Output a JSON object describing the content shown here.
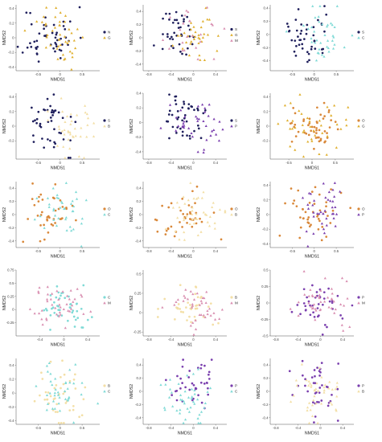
{
  "figure": {
    "rows": 5,
    "cols": 3,
    "xlabel": "NMDS1",
    "ylabel": "NMDS2",
    "colors": {
      "navy": "#1f1f5c",
      "gold": "#e0b030",
      "cyan": "#7fdad6",
      "beige": "#f3dfa6",
      "orange": "#d9883a",
      "purple": "#7a3fae",
      "pink": "#d98fb1",
      "mustard": "#c9a23a"
    }
  },
  "chart_data": [
    {
      "type": "scatter",
      "panel": 1,
      "xlabel": "NMDS1",
      "ylabel": "NMDS2",
      "xlim": [
        -1.0,
        0.9
      ],
      "ylim": [
        -0.45,
        0.45
      ],
      "xticks": [
        -0.5,
        0.0,
        0.5
      ],
      "yticks": [
        -0.4,
        -0.2,
        0.0,
        0.2,
        0.4
      ],
      "legend": "right",
      "series": [
        {
          "name": "N",
          "color": "#1f1f5c",
          "shape": "circle",
          "n": 50,
          "cx": -0.25,
          "sx": 0.3,
          "cy": 0.02,
          "sy": 0.2,
          "seed": 11
        },
        {
          "name": "G",
          "color": "#e0b030",
          "shape": "triangle",
          "n": 45,
          "cx": 0.05,
          "sx": 0.32,
          "cy": 0.02,
          "sy": 0.2,
          "seed": 12
        }
      ]
    },
    {
      "type": "scatter",
      "panel": 2,
      "xlabel": "NMDS1",
      "ylabel": "NMDS2",
      "xlim": [
        -0.9,
        0.6
      ],
      "ylim": [
        -0.5,
        0.5
      ],
      "xticks": [
        -0.8,
        -0.4,
        0.0,
        0.4
      ],
      "yticks": [
        -0.4,
        -0.2,
        0.0,
        0.2,
        0.4
      ],
      "legend": "right",
      "series": [
        {
          "name": "S",
          "color": "#1f1f5c",
          "shape": "circle",
          "n": 40,
          "cx": -0.25,
          "sx": 0.18,
          "cy": 0.05,
          "sy": 0.18,
          "seed": 21
        },
        {
          "name": "G",
          "color": "#e0b030",
          "shape": "triangle",
          "n": 35,
          "cx": 0.0,
          "sx": 0.2,
          "cy": 0.0,
          "sy": 0.18,
          "seed": 22
        },
        {
          "name": "M",
          "color": "#d98fb1",
          "shape": "triangle",
          "n": 25,
          "cx": 0.05,
          "sx": 0.22,
          "cy": 0.02,
          "sy": 0.2,
          "seed": 23
        }
      ]
    },
    {
      "type": "scatter",
      "panel": 3,
      "xlabel": "NMDS1",
      "ylabel": "NMDS2",
      "xlim": [
        -1.0,
        0.9
      ],
      "ylim": [
        -0.55,
        0.45
      ],
      "xticks": [
        -0.5,
        0.0,
        0.5
      ],
      "yticks": [
        -0.4,
        -0.2,
        0.0,
        0.2,
        0.4
      ],
      "legend": "right",
      "series": [
        {
          "name": "S",
          "color": "#1f1f5c",
          "shape": "circle",
          "n": 45,
          "cx": -0.25,
          "sx": 0.3,
          "cy": -0.05,
          "sy": 0.2,
          "seed": 31
        },
        {
          "name": "C",
          "color": "#7fdad6",
          "shape": "triangle",
          "n": 40,
          "cx": 0.2,
          "sx": 0.3,
          "cy": 0.05,
          "sy": 0.2,
          "seed": 32
        }
      ]
    },
    {
      "type": "scatter",
      "panel": 4,
      "xlabel": "NMDS1",
      "ylabel": "NMDS2",
      "xlim": [
        -1.0,
        0.9
      ],
      "ylim": [
        -0.45,
        0.45
      ],
      "xticks": [
        -0.5,
        0.0,
        0.5
      ],
      "yticks": [
        -0.2,
        0.0,
        0.2,
        0.4
      ],
      "legend": "right",
      "series": [
        {
          "name": "S",
          "color": "#1f1f5c",
          "shape": "circle",
          "n": 45,
          "cx": -0.15,
          "sx": 0.3,
          "cy": 0.02,
          "sy": 0.2,
          "seed": 41
        },
        {
          "name": "B",
          "color": "#f3dfa6",
          "shape": "triangle",
          "n": 40,
          "cx": 0.2,
          "sx": 0.3,
          "cy": -0.02,
          "sy": 0.2,
          "seed": 42
        }
      ]
    },
    {
      "type": "scatter",
      "panel": 5,
      "xlabel": "NMDS1",
      "ylabel": "NMDS2",
      "xlim": [
        -0.9,
        0.6
      ],
      "ylim": [
        -0.5,
        0.4
      ],
      "xticks": [
        -0.8,
        -0.4,
        0.0,
        0.4
      ],
      "yticks": [
        -0.4,
        -0.2,
        0.0,
        0.2,
        0.4
      ],
      "legend": "right",
      "series": [
        {
          "name": "S",
          "color": "#1f1f5c",
          "shape": "circle",
          "n": 45,
          "cx": -0.2,
          "sx": 0.22,
          "cy": 0.05,
          "sy": 0.18,
          "seed": 51
        },
        {
          "name": "P",
          "color": "#7a3fae",
          "shape": "triangle",
          "n": 40,
          "cx": 0.05,
          "sx": 0.25,
          "cy": -0.05,
          "sy": 0.18,
          "seed": 52
        }
      ]
    },
    {
      "type": "scatter",
      "panel": 6,
      "xlabel": "NMDS1",
      "ylabel": "NMDS2",
      "xlim": [
        -0.9,
        0.9
      ],
      "ylim": [
        -0.45,
        0.45
      ],
      "xticks": [
        -0.5,
        0.0,
        0.5
      ],
      "yticks": [
        -0.2,
        0.0,
        0.2,
        0.4
      ],
      "legend": "right",
      "series": [
        {
          "name": "O",
          "color": "#d9883a",
          "shape": "circle",
          "n": 50,
          "cx": 0.0,
          "sx": 0.3,
          "cy": 0.0,
          "sy": 0.17,
          "seed": 61
        },
        {
          "name": "G",
          "color": "#e0b030",
          "shape": "triangle",
          "n": 40,
          "cx": 0.05,
          "sx": 0.32,
          "cy": 0.0,
          "sy": 0.18,
          "seed": 62
        }
      ]
    },
    {
      "type": "scatter",
      "panel": 7,
      "xlabel": "NMDS1",
      "ylabel": "NMDS2",
      "xlim": [
        -1.0,
        0.9
      ],
      "ylim": [
        -0.5,
        0.5
      ],
      "xticks": [
        -0.5,
        0.0,
        0.5
      ],
      "yticks": [
        -0.4,
        -0.2,
        0.0,
        0.2,
        0.4
      ],
      "legend": "right",
      "series": [
        {
          "name": "O",
          "color": "#d9883a",
          "shape": "circle",
          "n": 40,
          "cx": -0.2,
          "sx": 0.3,
          "cy": 0.0,
          "sy": 0.2,
          "seed": 71
        },
        {
          "name": "C",
          "color": "#7fdad6",
          "shape": "triangle",
          "n": 40,
          "cx": 0.05,
          "sx": 0.3,
          "cy": 0.02,
          "sy": 0.2,
          "seed": 72
        }
      ]
    },
    {
      "type": "scatter",
      "panel": 8,
      "xlabel": "NMDS1",
      "ylabel": "NMDS2",
      "xlim": [
        -0.9,
        0.6
      ],
      "ylim": [
        -0.5,
        0.5
      ],
      "xticks": [
        -0.8,
        -0.4,
        0.0,
        0.4
      ],
      "yticks": [
        -0.4,
        -0.2,
        0.0,
        0.2,
        0.4
      ],
      "legend": "right",
      "series": [
        {
          "name": "O",
          "color": "#d9883a",
          "shape": "circle",
          "n": 40,
          "cx": -0.2,
          "sx": 0.22,
          "cy": -0.05,
          "sy": 0.2,
          "seed": 81
        },
        {
          "name": "B",
          "color": "#f3dfa6",
          "shape": "triangle",
          "n": 45,
          "cx": 0.05,
          "sx": 0.22,
          "cy": 0.02,
          "sy": 0.2,
          "seed": 82
        }
      ]
    },
    {
      "type": "scatter",
      "panel": 9,
      "xlabel": "NMDS1",
      "ylabel": "NMDS2",
      "xlim": [
        -1.0,
        0.9
      ],
      "ylim": [
        -0.45,
        0.45
      ],
      "xticks": [
        -0.5,
        0.0,
        0.5
      ],
      "yticks": [
        -0.4,
        -0.2,
        0.0,
        0.2,
        0.4
      ],
      "legend": "right",
      "series": [
        {
          "name": "O",
          "color": "#d9883a",
          "shape": "circle",
          "n": 45,
          "cx": -0.05,
          "sx": 0.3,
          "cy": 0.0,
          "sy": 0.18,
          "seed": 91
        },
        {
          "name": "P",
          "color": "#7a3fae",
          "shape": "triangle",
          "n": 40,
          "cx": 0.2,
          "sx": 0.3,
          "cy": 0.02,
          "sy": 0.2,
          "seed": 92
        }
      ]
    },
    {
      "type": "scatter",
      "panel": 10,
      "xlabel": "NMDS1",
      "ylabel": "NMDS2",
      "xlim": [
        -0.8,
        0.6
      ],
      "ylim": [
        -0.5,
        0.75
      ],
      "xticks": [
        -0.4,
        0.0,
        0.4
      ],
      "yticks": [
        -0.25,
        0.0,
        0.25,
        0.5,
        0.75
      ],
      "legend": "right",
      "series": [
        {
          "name": "C",
          "color": "#7fdad6",
          "shape": "circle",
          "n": 45,
          "cx": 0.0,
          "sx": 0.2,
          "cy": 0.05,
          "sy": 0.2,
          "seed": 101
        },
        {
          "name": "M",
          "color": "#d98fb1",
          "shape": "triangle",
          "n": 45,
          "cx": -0.1,
          "sx": 0.2,
          "cy": 0.1,
          "sy": 0.2,
          "seed": 102
        }
      ]
    },
    {
      "type": "scatter",
      "panel": 11,
      "xlabel": "NMDS1",
      "ylabel": "NMDS2",
      "xlim": [
        -0.9,
        0.6
      ],
      "ylim": [
        -0.3,
        0.55
      ],
      "xticks": [
        -0.8,
        -0.4,
        0.0,
        0.4
      ],
      "yticks": [
        -0.25,
        0.0,
        0.25,
        0.5
      ],
      "legend": "right",
      "series": [
        {
          "name": "B",
          "color": "#f3dfa6",
          "shape": "circle",
          "n": 40,
          "cx": -0.1,
          "sx": 0.22,
          "cy": 0.05,
          "sy": 0.15,
          "seed": 111
        },
        {
          "name": "M",
          "color": "#d98fb1",
          "shape": "triangle",
          "n": 40,
          "cx": 0.05,
          "sx": 0.22,
          "cy": 0.1,
          "sy": 0.15,
          "seed": 112
        }
      ]
    },
    {
      "type": "scatter",
      "panel": 12,
      "xlabel": "NMDS1",
      "ylabel": "NMDS2",
      "xlim": [
        -0.9,
        0.6
      ],
      "ylim": [
        -0.5,
        0.5
      ],
      "xticks": [
        -0.8,
        -0.4,
        0.0,
        0.4
      ],
      "yticks": [
        -0.5,
        -0.25,
        0.0,
        0.25,
        0.5
      ],
      "legend": "right",
      "series": [
        {
          "name": "P",
          "color": "#7a3fae",
          "shape": "circle",
          "n": 40,
          "cx": -0.05,
          "sx": 0.2,
          "cy": 0.0,
          "sy": 0.2,
          "seed": 121
        },
        {
          "name": "M",
          "color": "#d98fb1",
          "shape": "triangle",
          "n": 45,
          "cx": 0.05,
          "sx": 0.22,
          "cy": 0.0,
          "sy": 0.2,
          "seed": 122
        }
      ]
    },
    {
      "type": "scatter",
      "panel": 13,
      "xlabel": "NMDS1",
      "ylabel": "NMDS2",
      "xlim": [
        -1.0,
        0.9
      ],
      "ylim": [
        -0.45,
        0.5
      ],
      "xticks": [
        -0.5,
        0.0,
        0.5
      ],
      "yticks": [
        -0.4,
        -0.2,
        0.0,
        0.2,
        0.4
      ],
      "legend": "right",
      "series": [
        {
          "name": "B",
          "color": "#f3dfa6",
          "shape": "circle",
          "n": 45,
          "cx": -0.05,
          "sx": 0.32,
          "cy": -0.02,
          "sy": 0.2,
          "seed": 131
        },
        {
          "name": "C",
          "color": "#7fdad6",
          "shape": "triangle",
          "n": 40,
          "cx": 0.0,
          "sx": 0.28,
          "cy": 0.05,
          "sy": 0.18,
          "seed": 132
        }
      ]
    },
    {
      "type": "scatter",
      "panel": 14,
      "xlabel": "NMDS1",
      "ylabel": "NMDS2",
      "xlim": [
        -0.9,
        0.6
      ],
      "ylim": [
        -0.5,
        0.5
      ],
      "xticks": [
        -0.8,
        -0.4,
        0.0,
        0.4
      ],
      "yticks": [
        -0.4,
        -0.2,
        0.0,
        0.2,
        0.4
      ],
      "legend": "right",
      "series": [
        {
          "name": "P",
          "color": "#7a3fae",
          "shape": "circle",
          "n": 40,
          "cx": 0.0,
          "sx": 0.2,
          "cy": 0.1,
          "sy": 0.18,
          "seed": 141
        },
        {
          "name": "C",
          "color": "#7fdad6",
          "shape": "triangle",
          "n": 45,
          "cx": -0.1,
          "sx": 0.22,
          "cy": -0.1,
          "sy": 0.2,
          "seed": 142
        }
      ]
    },
    {
      "type": "scatter",
      "panel": 15,
      "xlabel": "NMDS1",
      "ylabel": "NMDS2",
      "xlim": [
        -0.9,
        0.6
      ],
      "ylim": [
        -0.5,
        0.5
      ],
      "xticks": [
        -0.8,
        -0.4,
        0.0,
        0.4
      ],
      "yticks": [
        -0.4,
        -0.2,
        0.0,
        0.2,
        0.4
      ],
      "legend": "right",
      "series": [
        {
          "name": "P",
          "color": "#7a3fae",
          "shape": "circle",
          "n": 40,
          "cx": 0.0,
          "sx": 0.2,
          "cy": 0.05,
          "sy": 0.2,
          "seed": 151
        },
        {
          "name": "B",
          "color": "#f3dfa6",
          "shape": "triangle",
          "n": 45,
          "cx": -0.05,
          "sx": 0.24,
          "cy": -0.05,
          "sy": 0.2,
          "seed": 152
        }
      ]
    }
  ]
}
